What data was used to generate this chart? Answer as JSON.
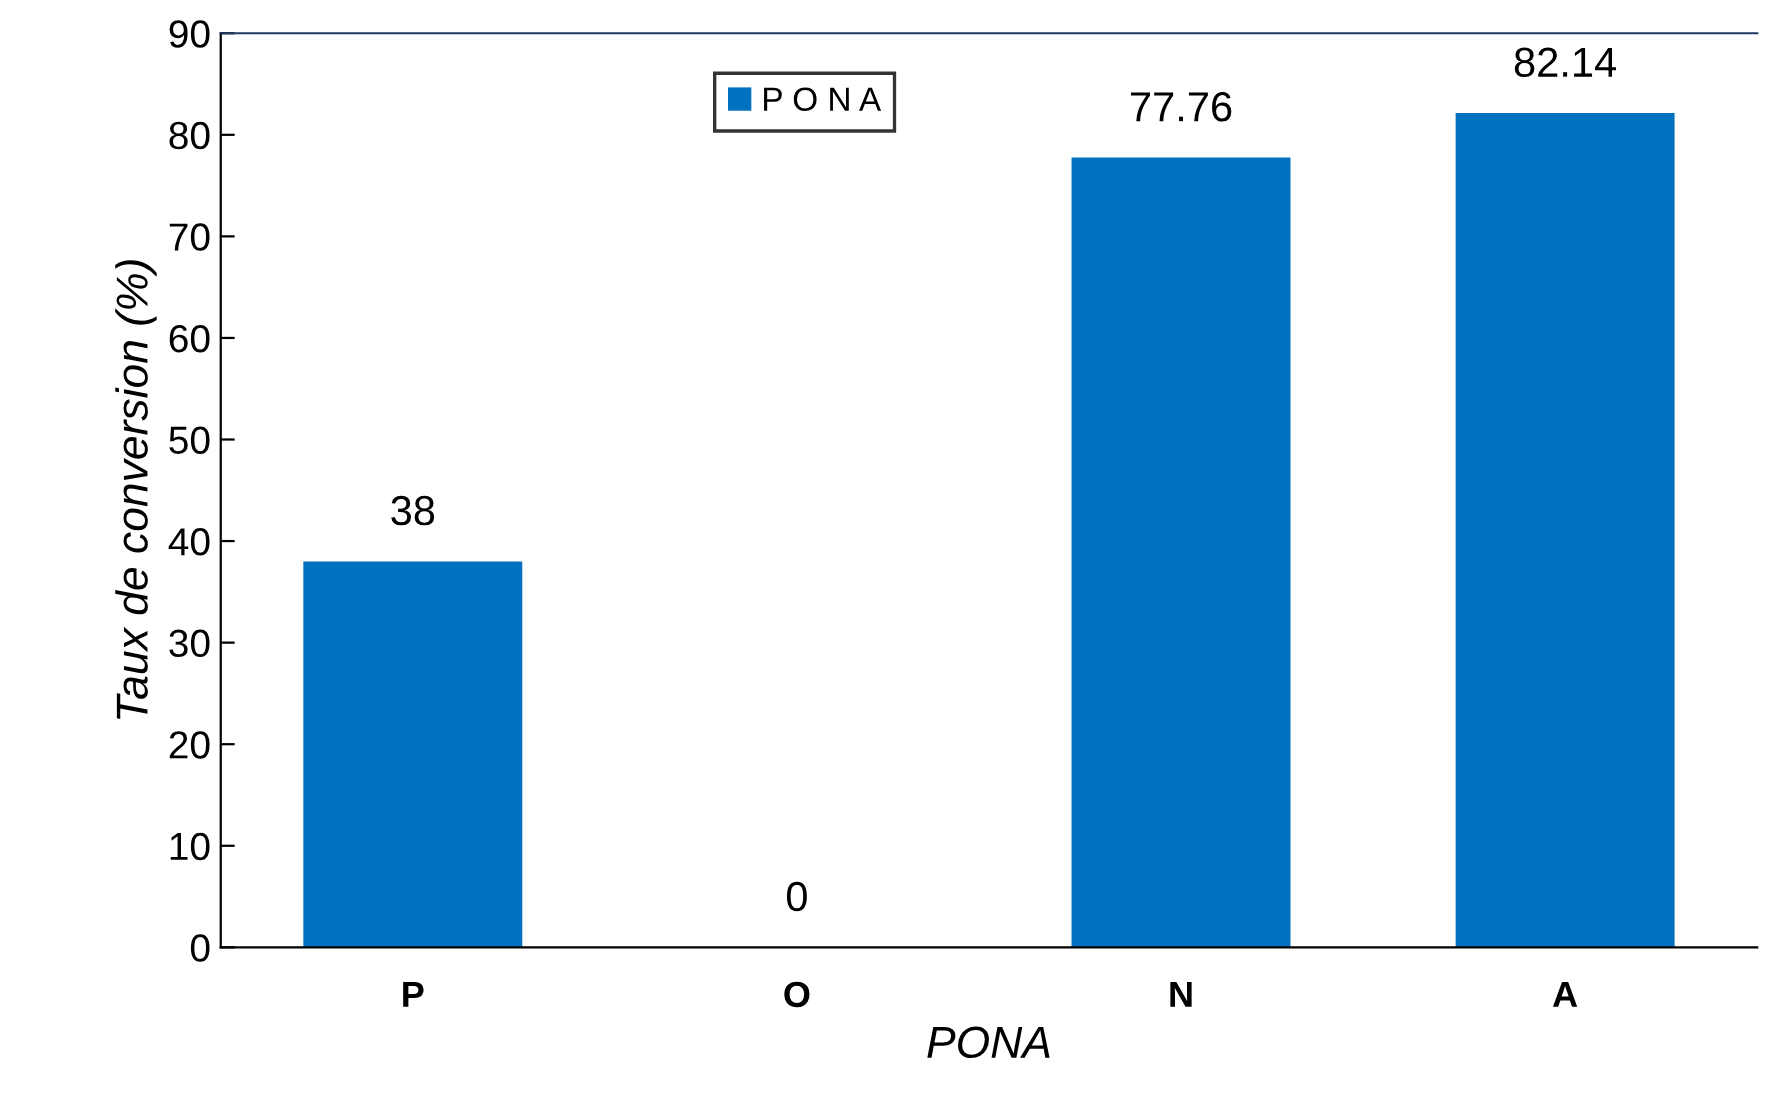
{
  "chart_data": {
    "type": "bar",
    "xlabel": "PONA",
    "ylabel": "Taux de conversion (%)",
    "categories": [
      "P",
      "O",
      "N",
      "A"
    ],
    "series": [
      {
        "name": "P O N A",
        "color": "#0070c0",
        "values": [
          38,
          0,
          77.76,
          82.14
        ]
      }
    ],
    "ylim": [
      0,
      90
    ],
    "yticks": [
      0,
      10,
      20,
      30,
      40,
      50,
      60,
      70,
      80,
      90
    ],
    "data_labels": true,
    "grid": false,
    "legend": "top"
  }
}
